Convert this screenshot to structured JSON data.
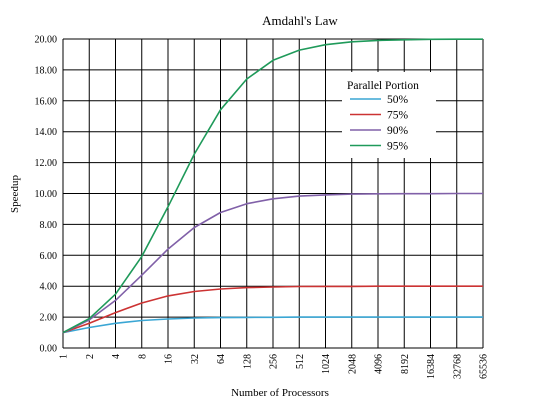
{
  "chart_data": {
    "type": "line",
    "title": "Amdahl's Law",
    "xlabel": "Number of Processors",
    "ylabel": "Speedup",
    "x_scale": "log2",
    "x": [
      1,
      2,
      4,
      8,
      16,
      32,
      64,
      128,
      256,
      512,
      1024,
      2048,
      4096,
      8192,
      16384,
      32768,
      65536
    ],
    "x_tick_labels": [
      "1",
      "2",
      "4",
      "8",
      "16",
      "32",
      "64",
      "128",
      "256",
      "512",
      "1024",
      "2048",
      "4096",
      "8192",
      "16384",
      "32768",
      "65536"
    ],
    "ylim": [
      0,
      20
    ],
    "y_ticks": [
      0,
      2,
      4,
      6,
      8,
      10,
      12,
      14,
      16,
      18,
      20
    ],
    "y_tick_labels": [
      "0.00",
      "2.00",
      "4.00",
      "6.00",
      "8.00",
      "10.00",
      "12.00",
      "14.00",
      "16.00",
      "18.00",
      "20.00"
    ],
    "grid": true,
    "legend": {
      "title": "Parallel Portion",
      "placement": "top-right"
    },
    "series": [
      {
        "name": "50%",
        "color": "#3aa6d4",
        "values": [
          1.0,
          1.33,
          1.6,
          1.78,
          1.88,
          1.94,
          1.97,
          1.98,
          1.99,
          2.0,
          2.0,
          2.0,
          2.0,
          2.0,
          2.0,
          2.0,
          2.0
        ]
      },
      {
        "name": "75%",
        "color": "#cc3333",
        "values": [
          1.0,
          1.6,
          2.29,
          2.91,
          3.37,
          3.66,
          3.82,
          3.91,
          3.95,
          3.98,
          3.99,
          3.99,
          4.0,
          4.0,
          4.0,
          4.0,
          4.0
        ]
      },
      {
        "name": "90%",
        "color": "#8060a8",
        "values": [
          1.0,
          1.82,
          3.08,
          4.71,
          6.4,
          7.8,
          8.77,
          9.34,
          9.66,
          9.83,
          9.91,
          9.96,
          9.98,
          9.99,
          9.99,
          10.0,
          10.0
        ]
      },
      {
        "name": "95%",
        "color": "#1f9a5a",
        "values": [
          1.0,
          1.9,
          3.48,
          5.93,
          9.14,
          12.55,
          15.42,
          17.41,
          18.62,
          19.28,
          19.63,
          19.82,
          19.91,
          19.95,
          19.98,
          19.99,
          19.99
        ]
      }
    ]
  }
}
